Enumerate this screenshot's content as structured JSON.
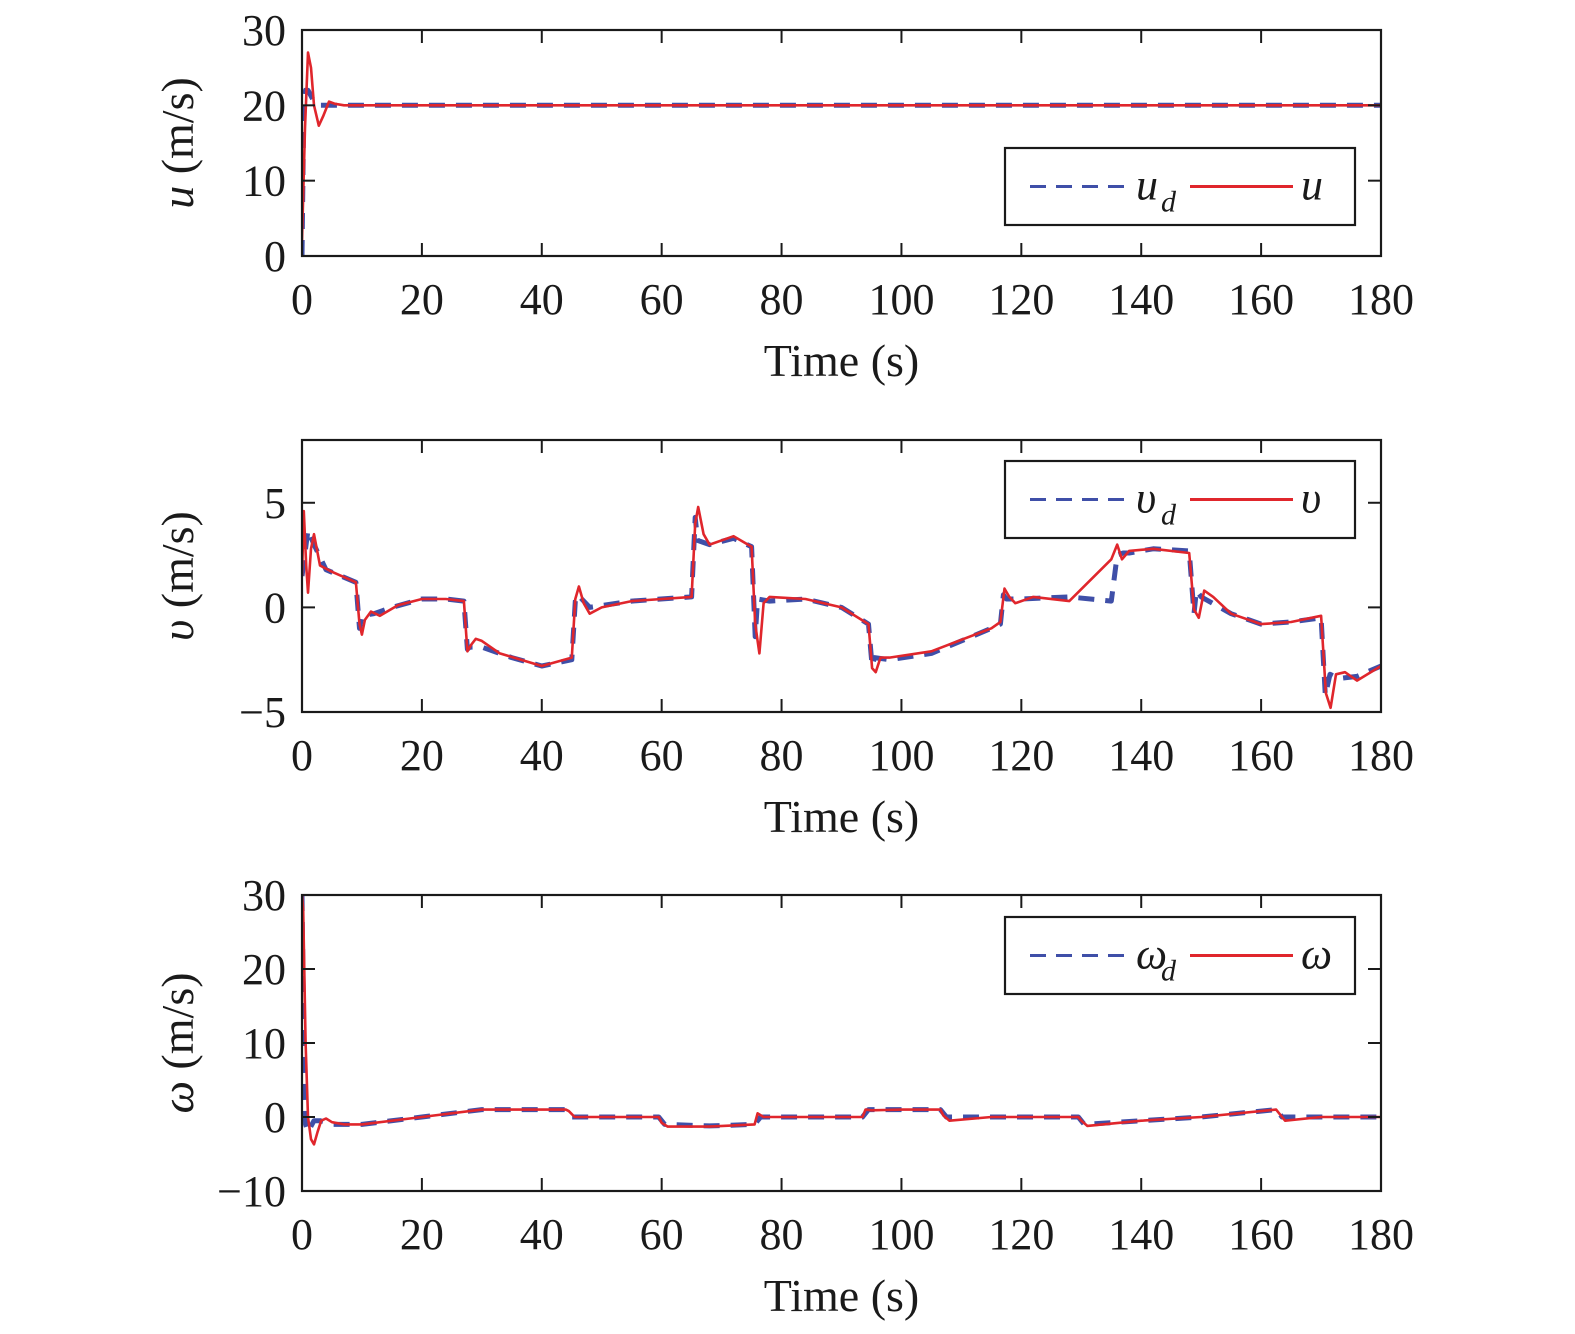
{
  "chart_data": [
    {
      "type": "line",
      "xlabel": "Time (s)",
      "ylabel": "u (m/s)",
      "ylabel_symbol": "u",
      "ylabel_unit": "(m/s)",
      "xlim": [
        0,
        180
      ],
      "ylim": [
        0,
        30
      ],
      "xticks": [
        "0",
        "20",
        "40",
        "60",
        "80",
        "100",
        "120",
        "140",
        "160",
        "180"
      ],
      "yticks": [
        "0",
        "10",
        "20",
        "30"
      ],
      "legend_position": "right",
      "legend": [
        {
          "symbol": "u",
          "subscript": "d"
        },
        {
          "symbol": "u",
          "subscript": ""
        }
      ],
      "series": [
        {
          "name": "u_d",
          "color": "#3f4fa8",
          "style": "dashed",
          "x": [
            0,
            0.3,
            0.6,
            1,
            2,
            3,
            5,
            180
          ],
          "y": [
            0,
            20,
            22,
            22,
            20.5,
            20,
            20,
            20
          ]
        },
        {
          "name": "u",
          "color": "#e0262c",
          "style": "solid",
          "x": [
            0,
            0.5,
            1,
            1.5,
            2,
            2.8,
            3.5,
            4.5,
            5.5,
            7,
            180
          ],
          "y": [
            2,
            17,
            27,
            25,
            20,
            17.3,
            18.5,
            20.5,
            20.2,
            20,
            20
          ]
        }
      ]
    },
    {
      "type": "line",
      "xlabel": "Time (s)",
      "ylabel": "v (m/s)",
      "ylabel_symbol": "υ",
      "ylabel_unit": "(m/s)",
      "xlim": [
        0,
        180
      ],
      "ylim": [
        -5,
        8
      ],
      "xticks": [
        "0",
        "20",
        "40",
        "60",
        "80",
        "100",
        "120",
        "140",
        "160",
        "180"
      ],
      "yticks": [
        "−5",
        "0",
        "5"
      ],
      "ytick_values": [
        -5,
        0,
        5
      ],
      "legend_position": "top-right",
      "legend": [
        {
          "symbol": "υ",
          "subscript": "d"
        },
        {
          "symbol": "υ",
          "subscript": ""
        }
      ],
      "series": [
        {
          "name": "v_d",
          "color": "#3f4fa8",
          "style": "dashed",
          "x": [
            0,
            1,
            2,
            4,
            9,
            9.6,
            10,
            12,
            15,
            20,
            24,
            27,
            27.6,
            28,
            30,
            35,
            40,
            45,
            45.6,
            46,
            48,
            55,
            65,
            65.6,
            66,
            68,
            72,
            75,
            75.6,
            76,
            78,
            84,
            90,
            94.5,
            95.1,
            95.5,
            98,
            105,
            115,
            116.5,
            117,
            117.5,
            120,
            128,
            135,
            136,
            137,
            138,
            142,
            148,
            148.8,
            149.2,
            150,
            155,
            160,
            165,
            170,
            170.7,
            171.5,
            173,
            176,
            180
          ],
          "y": [
            1.5,
            3.7,
            3,
            1.8,
            1.2,
            -1,
            -0.4,
            -0.3,
            0,
            0.4,
            0.4,
            0.3,
            -2,
            -1.9,
            -1.9,
            -2.4,
            -2.8,
            -2.5,
            0.3,
            0.6,
            0,
            0.3,
            0.5,
            4.3,
            3.2,
            3,
            3.3,
            2.9,
            -1.4,
            0.4,
            0.3,
            0.4,
            0,
            -0.8,
            -2.8,
            -2.4,
            -2.5,
            -2.2,
            -1,
            -0.8,
            0.6,
            0.4,
            0.4,
            0.5,
            0.3,
            2.5,
            2.6,
            2.6,
            2.8,
            2.7,
            -0.3,
            0.8,
            0.5,
            -0.3,
            -0.8,
            -0.7,
            -0.5,
            -4.2,
            -3.2,
            -3.4,
            -3.3,
            -2.8
          ]
        },
        {
          "name": "v",
          "color": "#e0262c",
          "style": "solid",
          "x": [
            0,
            0.3,
            0.7,
            1,
            1.5,
            2,
            3,
            5,
            9,
            9.6,
            10,
            10.5,
            11.5,
            13,
            16,
            20,
            24,
            27,
            27.6,
            28.2,
            29,
            30,
            33,
            40,
            45,
            45.6,
            46.2,
            47,
            48,
            50,
            55,
            65,
            65.6,
            66.1,
            67,
            68,
            72,
            75,
            75.6,
            76.3,
            77,
            78,
            84,
            90,
            94.5,
            95.1,
            95.7,
            96.5,
            98,
            105,
            115,
            116.5,
            117.2,
            118,
            119,
            122,
            128,
            135,
            136,
            136.8,
            138,
            142,
            148,
            148.8,
            149.6,
            150.5,
            152,
            155,
            160,
            165,
            170,
            170.8,
            171.6,
            172.5,
            174,
            176,
            180
          ],
          "y": [
            1.5,
            4.6,
            2,
            0.7,
            2.8,
            3.5,
            2,
            1.7,
            1.2,
            -0.8,
            -1.3,
            -0.6,
            -0.2,
            -0.4,
            0.1,
            0.4,
            0.4,
            0.3,
            -2.1,
            -1.8,
            -1.5,
            -1.6,
            -2.2,
            -2.8,
            -2.4,
            0.4,
            1,
            0.2,
            -0.3,
            0,
            0.3,
            0.5,
            4,
            4.8,
            3.5,
            3,
            3.4,
            2.9,
            -0.8,
            -2.2,
            0.2,
            0.5,
            0.4,
            0,
            -0.8,
            -2.9,
            -3.1,
            -2.4,
            -2.4,
            -2.1,
            -1,
            -0.7,
            0.9,
            0.5,
            0.2,
            0.5,
            0.3,
            2.3,
            3,
            2.3,
            2.7,
            2.8,
            2.6,
            -0.1,
            -0.5,
            0.8,
            0.5,
            -0.3,
            -0.8,
            -0.7,
            -0.4,
            -4.1,
            -4.8,
            -3.2,
            -3.1,
            -3.5,
            -2.8
          ]
        }
      ]
    },
    {
      "type": "line",
      "xlabel": "Time (s)",
      "ylabel": "ω (m/s)",
      "ylabel_symbol": "ω",
      "ylabel_unit": "(m/s)",
      "xlim": [
        0,
        180
      ],
      "ylim": [
        -10,
        30
      ],
      "xticks": [
        "0",
        "20",
        "40",
        "60",
        "80",
        "100",
        "120",
        "140",
        "160",
        "180"
      ],
      "yticks": [
        "−10",
        "0",
        "10",
        "20",
        "30"
      ],
      "ytick_values": [
        -10,
        0,
        10,
        20,
        30
      ],
      "legend_position": "top-right",
      "legend": [
        {
          "symbol": "ω",
          "subscript": "d"
        },
        {
          "symbol": "ω",
          "subscript": ""
        }
      ],
      "series": [
        {
          "name": "omega_d",
          "color": "#3f4fa8",
          "style": "dashed",
          "x": [
            0,
            0.3,
            0.6,
            1,
            2,
            3,
            5,
            10,
            20,
            30,
            35,
            44,
            45,
            50,
            59.5,
            60.5,
            68,
            75.5,
            76.5,
            80,
            93.5,
            94.5,
            100,
            106.5,
            107.5,
            115,
            129.5,
            130.5,
            140,
            150,
            162.5,
            163.5,
            170,
            180
          ],
          "y": [
            30,
            10,
            -1,
            -2,
            -0.5,
            -0.5,
            -1,
            -1,
            0,
            1,
            1,
            1,
            0,
            0,
            0,
            -1,
            -1.2,
            -1,
            0,
            0,
            0,
            1,
            1,
            1,
            0,
            0,
            0,
            -1,
            -0.5,
            0,
            1,
            0,
            0,
            0
          ]
        },
        {
          "name": "omega",
          "color": "#e0262c",
          "style": "solid",
          "x": [
            0,
            0.2,
            0.6,
            1,
            1.5,
            2,
            2.6,
            3.2,
            4,
            5,
            7,
            10,
            20,
            30,
            35,
            44,
            44.5,
            45.5,
            50,
            59.5,
            60,
            61,
            68,
            75.5,
            76,
            77,
            80,
            93.5,
            94,
            95,
            100,
            106.5,
            107,
            108,
            115,
            129.5,
            130,
            131,
            140,
            150,
            162.5,
            163,
            164,
            170,
            180
          ],
          "y": [
            30,
            28,
            10,
            0,
            -3,
            -3.7,
            -2,
            -0.5,
            -0.2,
            -0.7,
            -1,
            -1,
            0,
            1,
            1,
            1,
            0.8,
            0,
            0,
            0,
            -0.8,
            -1.3,
            -1.3,
            -1,
            0.5,
            0,
            0,
            0,
            1,
            0.9,
            1,
            1,
            0.2,
            -0.5,
            0,
            0,
            -0.5,
            -1.2,
            -0.5,
            0,
            1,
            0.5,
            -0.5,
            0,
            0
          ]
        }
      ]
    }
  ]
}
